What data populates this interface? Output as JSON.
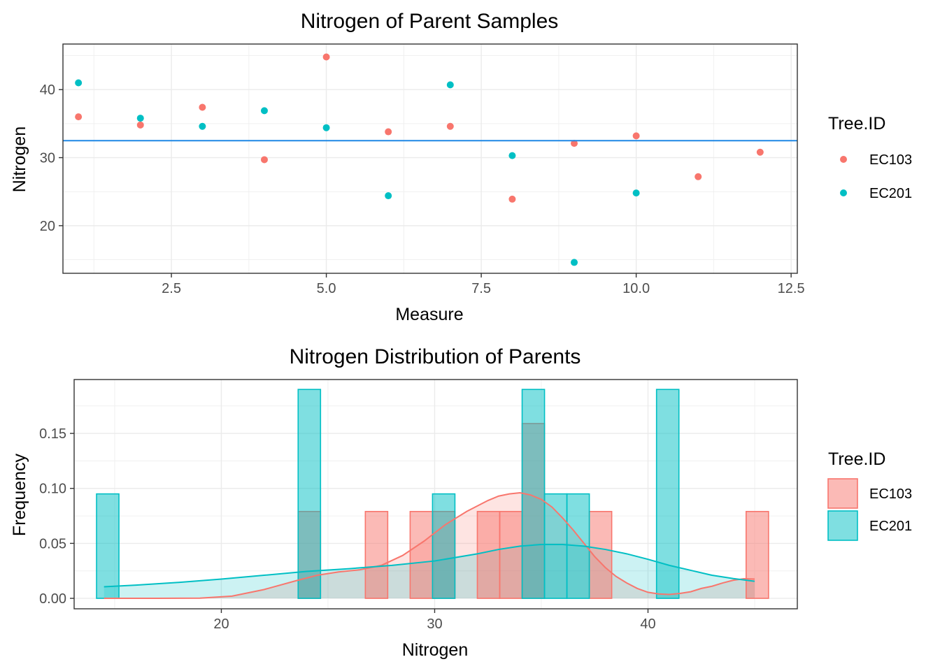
{
  "chart_data": [
    {
      "type": "scatter",
      "title": "Nitrogen of Parent Samples",
      "xlabel": "Measure",
      "ylabel": "Nitrogen",
      "xlim": [
        0.75,
        12.6
      ],
      "ylim": [
        13.0,
        46.7
      ],
      "xticks": [
        2.5,
        5.0,
        7.5,
        10.0,
        12.5
      ],
      "xtick_labels": [
        "2.5",
        "5.0",
        "7.5",
        "10.0",
        "12.5"
      ],
      "yticks": [
        20,
        30,
        40
      ],
      "ytick_labels": [
        "20",
        "30",
        "40"
      ],
      "grid": true,
      "reference_line": {
        "orientation": "horizontal",
        "y": 32.5,
        "color": "#1E88E5"
      },
      "legend": {
        "title": "Tree.ID",
        "position": "right"
      },
      "series": [
        {
          "name": "EC103",
          "color": "#F8766D",
          "points": [
            {
              "x": 1,
              "y": 36.0
            },
            {
              "x": 2,
              "y": 34.8
            },
            {
              "x": 3,
              "y": 37.4
            },
            {
              "x": 4,
              "y": 29.7
            },
            {
              "x": 5,
              "y": 44.8
            },
            {
              "x": 6,
              "y": 33.8
            },
            {
              "x": 7,
              "y": 34.6
            },
            {
              "x": 8,
              "y": 23.9
            },
            {
              "x": 9,
              "y": 32.1
            },
            {
              "x": 10,
              "y": 33.2
            },
            {
              "x": 11,
              "y": 27.2
            },
            {
              "x": 12,
              "y": 30.8
            }
          ]
        },
        {
          "name": "EC201",
          "color": "#00BFC4",
          "points": [
            {
              "x": 1,
              "y": 41.0
            },
            {
              "x": 2,
              "y": 35.8
            },
            {
              "x": 3,
              "y": 34.6
            },
            {
              "x": 4,
              "y": 36.9
            },
            {
              "x": 5,
              "y": 34.4
            },
            {
              "x": 6,
              "y": 24.4
            },
            {
              "x": 7,
              "y": 40.7
            },
            {
              "x": 8,
              "y": 30.3
            },
            {
              "x": 9,
              "y": 14.6
            },
            {
              "x": 10,
              "y": 24.8
            }
          ]
        }
      ]
    },
    {
      "type": "bar",
      "subtype": "histogram_with_density",
      "title": "Nitrogen Distribution of Parents",
      "xlabel": "Nitrogen",
      "ylabel": "Frequency",
      "xlim": [
        13.1,
        47.0
      ],
      "ylim": [
        -0.0095,
        0.199
      ],
      "xticks": [
        20,
        30,
        40
      ],
      "xtick_labels": [
        "20",
        "30",
        "40"
      ],
      "yticks": [
        0.0,
        0.05,
        0.1,
        0.15
      ],
      "ytick_labels": [
        "0.00",
        "0.05",
        "0.10",
        "0.15"
      ],
      "grid": true,
      "bin_width": 1.05,
      "legend": {
        "title": "Tree.ID",
        "position": "right"
      },
      "series": [
        {
          "name": "EC103",
          "color": "#F8766D",
          "bins": [
            {
              "x0": 26.75,
              "x1": 27.8,
              "value": 0.079
            },
            {
              "x0": 28.85,
              "x1": 29.9,
              "value": 0.079
            },
            {
              "x0": 29.9,
              "x1": 30.95,
              "value": 0.079
            },
            {
              "x0": 32.0,
              "x1": 33.05,
              "value": 0.079
            },
            {
              "x0": 33.05,
              "x1": 34.1,
              "value": 0.079
            },
            {
              "x0": 34.1,
              "x1": 35.15,
              "value": 0.159
            },
            {
              "x0": 37.25,
              "x1": 38.3,
              "value": 0.079
            },
            {
              "x0": 44.6,
              "x1": 45.65,
              "value": 0.079
            },
            {
              "x0": 23.6,
              "x1": 24.65,
              "value": 0.079
            }
          ],
          "density": {
            "x": [
              14.5,
              17.0,
              19.0,
              20.5,
              22.0,
              23.5,
              24.5,
              25.5,
              26.5,
              27.5,
              28.5,
              29.5,
              30.5,
              31.5,
              32.5,
              33.0,
              33.5,
              34.0,
              34.5,
              35.0,
              35.5,
              36.0,
              36.5,
              37.0,
              37.5,
              38.0,
              38.5,
              39.0,
              39.5,
              40.0,
              40.5,
              41.0,
              41.5,
              42.0,
              42.5,
              43.0,
              43.5,
              44.0,
              44.5,
              45.0
            ],
            "y": [
              0.0,
              0.0,
              0.0002,
              0.002,
              0.008,
              0.016,
              0.021,
              0.024,
              0.026,
              0.03,
              0.039,
              0.052,
              0.067,
              0.079,
              0.089,
              0.093,
              0.095,
              0.096,
              0.094,
              0.09,
              0.083,
              0.073,
              0.062,
              0.05,
              0.038,
              0.028,
              0.02,
              0.014,
              0.009,
              0.0055,
              0.004,
              0.0035,
              0.0045,
              0.006,
              0.009,
              0.011,
              0.014,
              0.0165,
              0.0178,
              0.0175
            ]
          }
        },
        {
          "name": "EC201",
          "color": "#00BFC4",
          "bins": [
            {
              "x0": 14.15,
              "x1": 15.2,
              "value": 0.095
            },
            {
              "x0": 23.6,
              "x1": 24.65,
              "value": 0.19
            },
            {
              "x0": 29.9,
              "x1": 30.95,
              "value": 0.095
            },
            {
              "x0": 34.1,
              "x1": 35.15,
              "value": 0.19
            },
            {
              "x0": 35.15,
              "x1": 36.2,
              "value": 0.095
            },
            {
              "x0": 36.2,
              "x1": 37.25,
              "value": 0.095
            },
            {
              "x0": 40.4,
              "x1": 41.45,
              "value": 0.19
            }
          ],
          "density": {
            "x": [
              14.5,
              16.0,
              18.0,
              20.0,
              22.0,
              24.0,
              26.0,
              28.0,
              30.0,
              32.0,
              33.0,
              34.0,
              35.0,
              36.0,
              37.0,
              38.0,
              39.0,
              40.0,
              41.0,
              42.0,
              43.0,
              44.0,
              45.0
            ],
            "y": [
              0.0105,
              0.012,
              0.0145,
              0.0175,
              0.021,
              0.0245,
              0.027,
              0.03,
              0.034,
              0.0405,
              0.0445,
              0.0475,
              0.049,
              0.049,
              0.0475,
              0.0445,
              0.0405,
              0.0355,
              0.03,
              0.0255,
              0.021,
              0.018,
              0.0155
            ]
          }
        }
      ]
    }
  ]
}
